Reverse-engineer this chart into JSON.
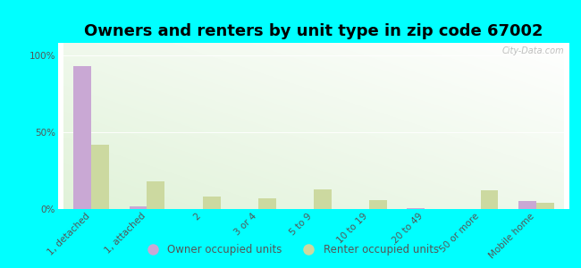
{
  "title": "Owners and renters by unit type in zip code 67002",
  "categories": [
    "1, detached",
    "1, attached",
    "2",
    "3 or 4",
    "5 to 9",
    "10 to 19",
    "20 to 49",
    "50 or more",
    "Mobile home"
  ],
  "owner_values": [
    93,
    2,
    0,
    0,
    0,
    0,
    0.5,
    0,
    5
  ],
  "renter_values": [
    42,
    18,
    8,
    7,
    13,
    6,
    0,
    12,
    4
  ],
  "owner_color": "#c9a8d4",
  "renter_color": "#ccd9a0",
  "background_color": "#00ffff",
  "ylabel_values": [
    "0%",
    "50%",
    "100%"
  ],
  "yticks": [
    0,
    50,
    100
  ],
  "ylim": [
    0,
    108
  ],
  "watermark": "City-Data.com",
  "legend_owner": "Owner occupied units",
  "legend_renter": "Renter occupied units",
  "title_fontsize": 13,
  "tick_fontsize": 7.5,
  "bar_width": 0.32
}
